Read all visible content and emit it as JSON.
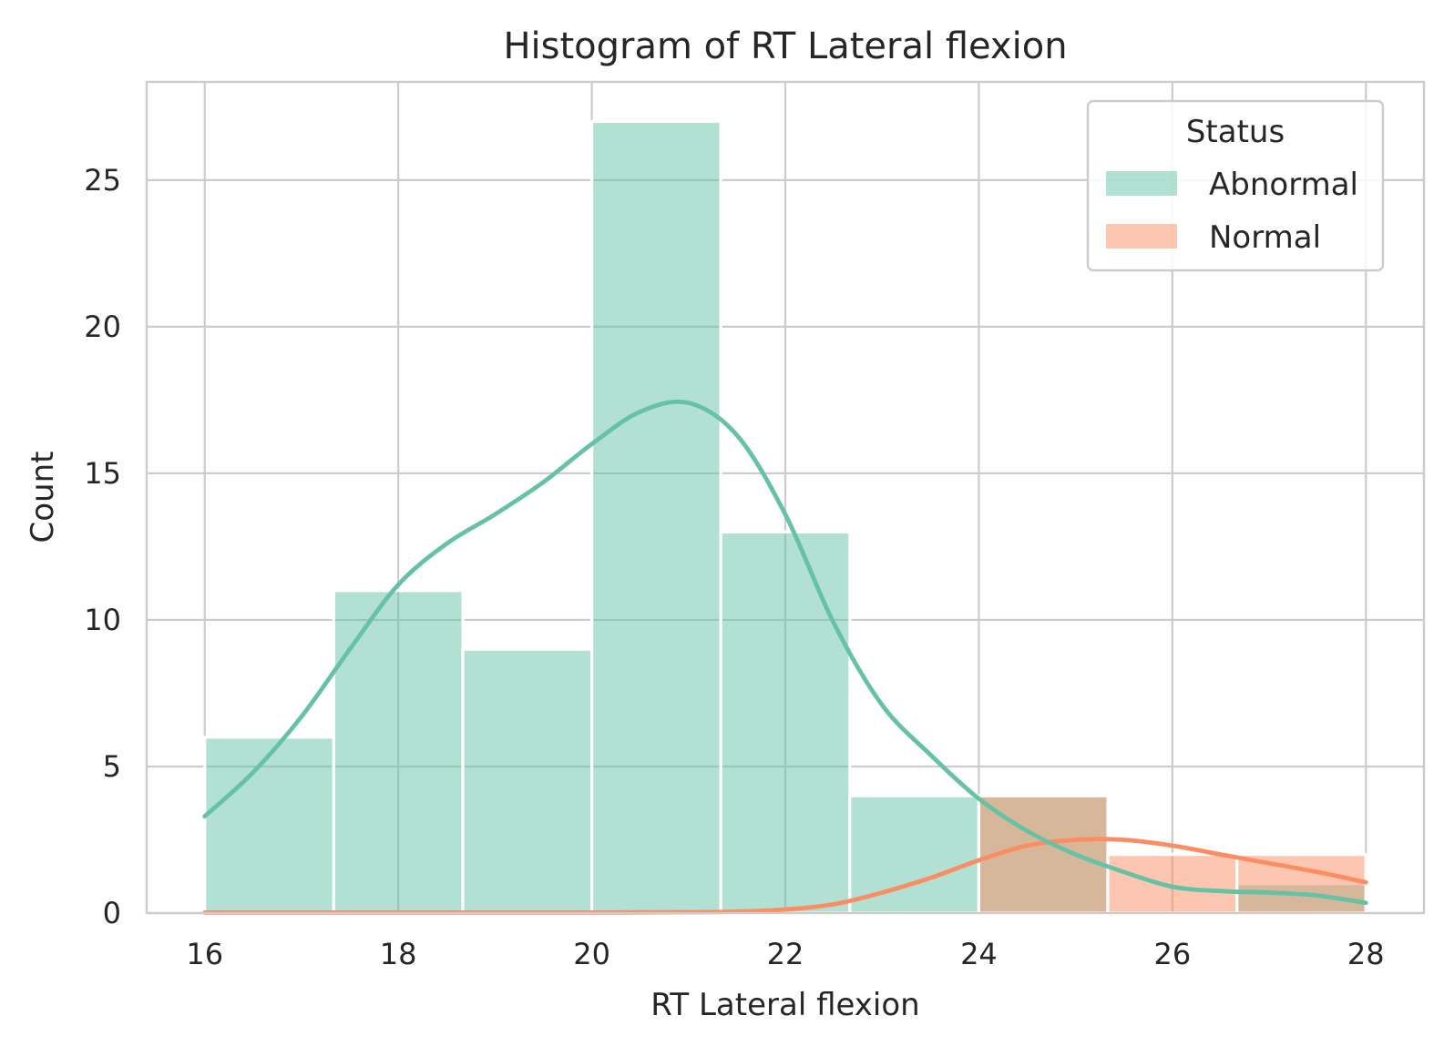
{
  "chart_data": {
    "type": "bar",
    "title": "Histogram of RT Lateral flexion",
    "xlabel": "RT Lateral flexion",
    "ylabel": "Count",
    "xlim": [
      15.4,
      28.6
    ],
    "ylim": [
      0,
      28.35
    ],
    "x_ticks": [
      16,
      18,
      20,
      22,
      24,
      26,
      28
    ],
    "y_ticks": [
      0,
      5,
      10,
      15,
      20,
      25
    ],
    "grid": true,
    "legend": {
      "title": "Status",
      "placement": "top-right",
      "entries": [
        "Abnormal",
        "Normal"
      ]
    },
    "bin_edges": [
      16,
      17.333,
      18.667,
      20,
      21.333,
      22.667,
      24,
      25.333,
      26.667,
      28
    ],
    "series": [
      {
        "name": "Abnormal",
        "color": "#66c2a5",
        "values": [
          6,
          11,
          9,
          27,
          13,
          4,
          4,
          0,
          1
        ],
        "kde": {
          "x": [
            16,
            16.5,
            17,
            17.5,
            18,
            18.5,
            19,
            19.5,
            20,
            20.5,
            21,
            21.5,
            22,
            22.5,
            23,
            23.5,
            24,
            24.5,
            25,
            25.5,
            26,
            26.5,
            27,
            27.5,
            28
          ],
          "y": [
            3.3,
            4.8,
            6.7,
            9.0,
            11.2,
            12.6,
            13.6,
            14.7,
            16.0,
            17.1,
            17.4,
            16.3,
            13.6,
            9.9,
            7.1,
            5.4,
            3.9,
            2.8,
            2.0,
            1.4,
            0.9,
            0.75,
            0.7,
            0.6,
            0.35
          ]
        }
      },
      {
        "name": "Normal",
        "color": "#fc8d62",
        "values": [
          0,
          0,
          0,
          0,
          0,
          0,
          4,
          2,
          2
        ],
        "kde": {
          "x": [
            16,
            17,
            18,
            19,
            20,
            21,
            21.5,
            22,
            22.5,
            23,
            23.5,
            24,
            24.5,
            25,
            25.5,
            26,
            26.5,
            27,
            27.5,
            28
          ],
          "y": [
            0.02,
            0.02,
            0.02,
            0.02,
            0.02,
            0.03,
            0.05,
            0.12,
            0.3,
            0.7,
            1.2,
            1.8,
            2.3,
            2.5,
            2.5,
            2.3,
            2.0,
            1.7,
            1.4,
            1.05
          ]
        }
      }
    ]
  }
}
